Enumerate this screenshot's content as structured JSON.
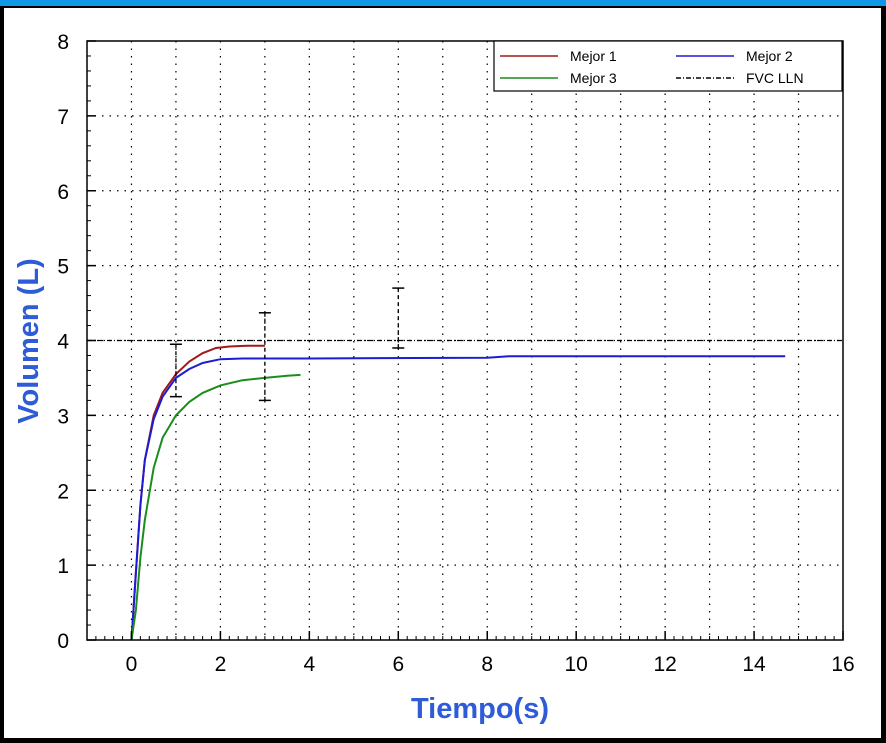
{
  "chart_data": {
    "type": "line",
    "xlabel": "Tiempo(s)",
    "ylabel": "Volumen (L)",
    "xlim": [
      -1,
      16
    ],
    "ylim": [
      0,
      8
    ],
    "x_ticks": [
      0,
      2,
      4,
      6,
      8,
      10,
      12,
      14,
      16
    ],
    "y_ticks": [
      0,
      1,
      2,
      3,
      4,
      5,
      6,
      7,
      8
    ],
    "grid": true,
    "legend_position": "top-right",
    "colors": {
      "axis_title": "#2e5bd8",
      "frame_accent": "#0f97e8",
      "Mejor 1": "#a01a1a",
      "Mejor 2": "#1c1cd6",
      "Mejor 3": "#1c8c1c",
      "FVC LLN": "#000000"
    },
    "series": [
      {
        "name": "Mejor 1",
        "x": [
          0,
          0.1,
          0.2,
          0.3,
          0.5,
          0.7,
          1.0,
          1.3,
          1.6,
          1.9,
          2.2,
          2.6,
          3.0
        ],
        "y": [
          0,
          0.9,
          1.8,
          2.4,
          3.0,
          3.3,
          3.55,
          3.72,
          3.83,
          3.9,
          3.92,
          3.93,
          3.93
        ]
      },
      {
        "name": "Mejor 2",
        "x": [
          0,
          0.1,
          0.2,
          0.3,
          0.5,
          0.7,
          1.0,
          1.3,
          1.6,
          2.0,
          2.5,
          4.0,
          8.0,
          8.5,
          14.7
        ],
        "y": [
          0,
          0.9,
          1.8,
          2.4,
          2.95,
          3.25,
          3.5,
          3.62,
          3.7,
          3.75,
          3.76,
          3.76,
          3.77,
          3.79,
          3.79
        ]
      },
      {
        "name": "Mejor 3",
        "x": [
          0,
          0.1,
          0.2,
          0.3,
          0.5,
          0.7,
          1.0,
          1.3,
          1.6,
          2.0,
          2.5,
          3.0,
          3.5,
          3.8
        ],
        "y": [
          0,
          0.4,
          1.1,
          1.6,
          2.3,
          2.7,
          3.0,
          3.18,
          3.3,
          3.4,
          3.47,
          3.5,
          3.53,
          3.54
        ]
      }
    ],
    "reference_line": {
      "name": "FVC LLN",
      "y": 4.0
    },
    "error_bars": [
      {
        "x": 1,
        "low": 3.25,
        "high": 3.95
      },
      {
        "x": 3,
        "low": 3.2,
        "high": 4.37
      },
      {
        "x": 6,
        "low": 3.9,
        "high": 4.7
      }
    ]
  }
}
